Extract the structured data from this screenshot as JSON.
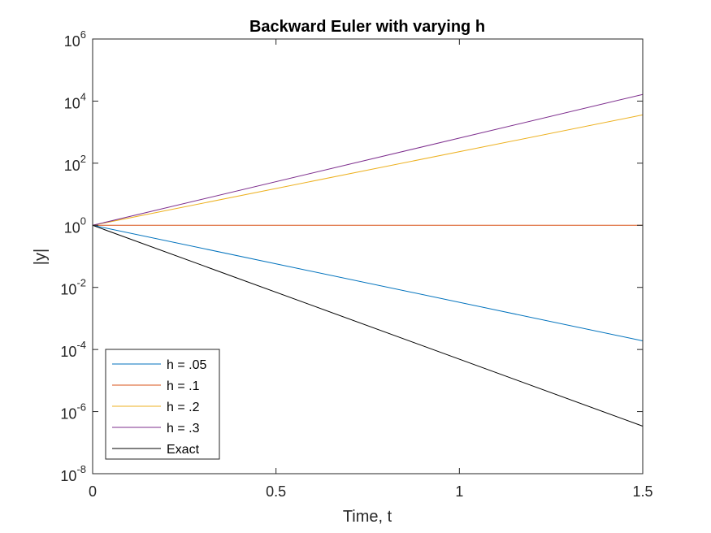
{
  "chart_data": {
    "type": "line",
    "title": "Backward Euler with varying h",
    "xlabel": "Time, t",
    "ylabel": "|y|",
    "xlim": [
      0,
      1.5
    ],
    "ylim": [
      1e-08,
      1000000.0
    ],
    "yscale": "log",
    "grid": false,
    "legend_position": "bottom-left",
    "x_ticks": [
      {
        "value": 0,
        "label": "0"
      },
      {
        "value": 0.5,
        "label": "0.5"
      },
      {
        "value": 1,
        "label": "1"
      },
      {
        "value": 1.5,
        "label": "1.5"
      }
    ],
    "y_ticks": [
      {
        "exp": -8,
        "base": "10",
        "sup": "-8"
      },
      {
        "exp": -6,
        "base": "10",
        "sup": "-6"
      },
      {
        "exp": -4,
        "base": "10",
        "sup": "-4"
      },
      {
        "exp": -2,
        "base": "10",
        "sup": "-2"
      },
      {
        "exp": 0,
        "base": "10",
        "sup": "0"
      },
      {
        "exp": 2,
        "base": "10",
        "sup": "2"
      },
      {
        "exp": 4,
        "base": "10",
        "sup": "4"
      },
      {
        "exp": 6,
        "base": "10",
        "sup": "6"
      }
    ],
    "series": [
      {
        "name": "h = .05",
        "color": "#0072BD",
        "x": [
          0,
          1.5
        ],
        "y": [
          1,
          0.00019
        ]
      },
      {
        "name": "h = .1",
        "color": "#D95319",
        "x": [
          0,
          1.5
        ],
        "y": [
          1,
          1
        ]
      },
      {
        "name": "h = .2",
        "color": "#EDB120",
        "x": [
          0,
          1.5
        ],
        "y": [
          1,
          3600
        ]
      },
      {
        "name": "h = .3",
        "color": "#7E2F8E",
        "x": [
          0,
          1.5
        ],
        "y": [
          1,
          16400
        ]
      },
      {
        "name": "Exact",
        "color": "#000000",
        "x": [
          0,
          1.5
        ],
        "y": [
          1,
          3.4e-07
        ]
      }
    ]
  }
}
